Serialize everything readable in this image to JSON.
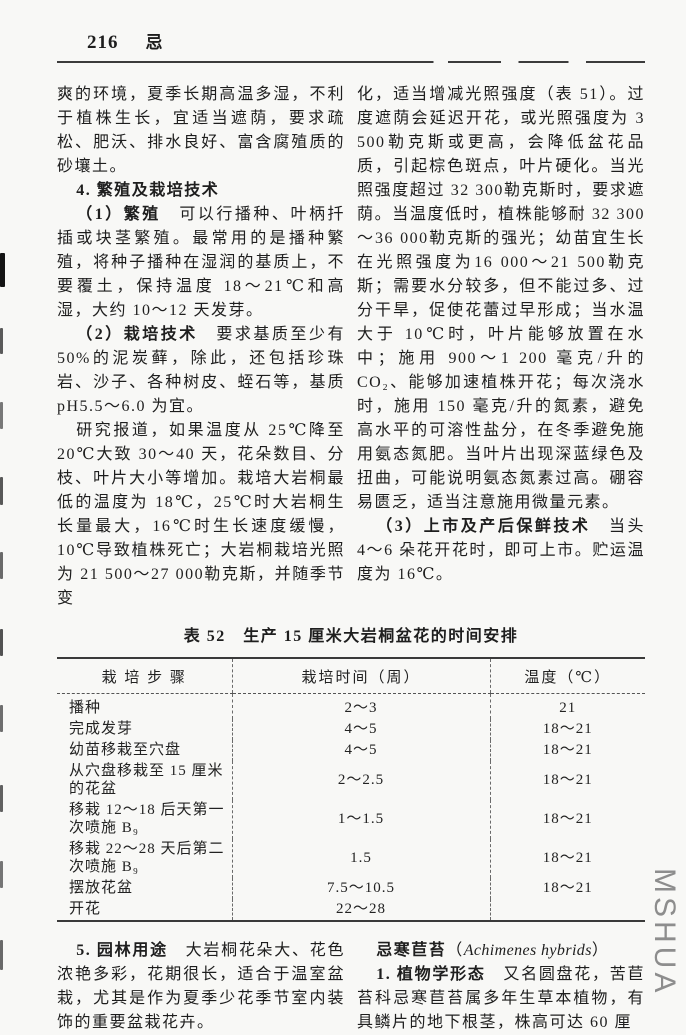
{
  "page_header": {
    "page_number": "216",
    "running_head": "忌"
  },
  "top_left": {
    "paragraphs": [
      {
        "style": "cont",
        "segments": [
          {
            "text": "爽的环境，夏季长期高温多湿，不利于植株生长，宜适当遮荫，要求疏松、肥沃、排水良好、富含腐殖质的砂壤土。"
          }
        ]
      },
      {
        "style": "ind",
        "segments": [
          {
            "text": "4. 繁殖及栽培技术",
            "bold": true
          }
        ]
      },
      {
        "style": "ind",
        "segments": [
          {
            "text": "（1）繁殖",
            "bold": true
          },
          {
            "text": "　可以行播种、叶柄扦插或块茎繁殖。最常用的是播种繁殖，将种子播种在湿润的基质上，不要覆土，保持温度 18～21℃和高湿，大约 10～12 天发芽。"
          }
        ]
      },
      {
        "style": "ind",
        "segments": [
          {
            "text": "（2）栽培技术",
            "bold": true
          },
          {
            "text": "　要求基质至少有 50%的泥炭藓，除此，还包括珍珠岩、沙子、各种树皮、蛭石等，基质 pH5.5～6.0 为宜。"
          }
        ]
      },
      {
        "style": "ind",
        "segments": [
          {
            "text": "研究报道，如果温度从 25℃降至 20℃大致 30～40 天，花朵数目、分枝、叶片大小等增加。栽培大岩桐最低的温度为 18℃，25℃时大岩桐生长量最大，16℃时生长速度缓慢，10℃导致植株死亡；大岩桐栽培光照为 21 500～27 000勒克斯，并随季节变"
          }
        ]
      }
    ]
  },
  "top_right": {
    "paragraphs": [
      {
        "style": "cont",
        "segments": [
          {
            "text": "化，适当增减光照强度（表 51）。过度遮荫会延迟开花，或光照强度为 3 500勒克斯或更高，会降低盆花品质，引起棕色斑点，叶片硬化。当光照强度超过 32 300勒克斯时，要求遮荫。当温度低时，植株能够耐 32 300～36 000勒克斯的强光；幼苗宜生长在光照强度为16 000～21 500勒克斯；需要水分较多，但不能过多、过分干旱，促使花蕾过早形成；当水温大于 10℃时，叶片能够放置在水中；施用 900～1 200 毫克/升的 CO₂、能够加速植株开花；每次浇水时，施用 150 毫克/升的氮素，避免高水平的可溶性盐分，在冬季避免施用氨态氮肥。当叶片出现深蓝绿色及扭曲，可能说明氨态氮素过高。硼容易匮乏，适当注意施用微量元素。"
          }
        ]
      },
      {
        "style": "ind",
        "segments": [
          {
            "text": "（3）上市及产后保鲜技术",
            "bold": true
          },
          {
            "text": "　当头 4～6 朵花开花时，即可上市。贮运温度为 16℃。"
          }
        ]
      }
    ]
  },
  "table": {
    "title": "表 52　生产 15 厘米大岩桐盆花的时间安排",
    "columns": [
      "栽 培 步 骤",
      "栽培时间（周）",
      "温度（℃）"
    ],
    "rows": [
      [
        "播种",
        "2～3",
        "21"
      ],
      [
        "完成发芽",
        "4～5",
        "18～21"
      ],
      [
        "幼苗移栽至穴盘",
        "4～5",
        "18～21"
      ],
      [
        "从穴盘移栽至 15 厘米的花盆",
        "2～2.5",
        "18～21"
      ],
      [
        "移栽 12～18 后天第一次喷施 B₉",
        "1～1.5",
        "18～21"
      ],
      [
        "移栽 22～28 天后第二次喷施 B₉",
        "1.5",
        "18～21"
      ],
      [
        "摆放花盆",
        "7.5～10.5",
        "18～21"
      ],
      [
        "开花",
        "22～28",
        ""
      ]
    ]
  },
  "bottom_left": {
    "paragraphs": [
      {
        "style": "ind",
        "segments": [
          {
            "text": "5. 园林用途",
            "bold": true
          },
          {
            "text": "　大岩桐花朵大、花色浓艳多彩，花期很长，适合于温室盆栽，尤其是作为夏季少花季节室内装饰的重要盆栽花卉。"
          }
        ]
      }
    ]
  },
  "bottom_right": {
    "paragraphs": [
      {
        "style": "ind",
        "segments": [
          {
            "text": "忌寒苣苔",
            "bold": true
          },
          {
            "text": "（"
          },
          {
            "text": "Achimenes hybrids",
            "italic": true
          },
          {
            "text": "）"
          }
        ]
      },
      {
        "style": "ind",
        "segments": [
          {
            "text": "1. 植物学形态",
            "bold": true
          },
          {
            "text": "　又名圆盘花，苦苣苔科忌寒苣苔属多年生草本植物，有具鳞片的地下根茎，株高可达 60 厘"
          }
        ]
      }
    ]
  },
  "watermark": "MSHUA",
  "colors": {
    "paper": "#f8f8f6",
    "ink": "#1e1e1e",
    "rule": "#3a3a3a",
    "watermark": "#8d8d8d"
  }
}
